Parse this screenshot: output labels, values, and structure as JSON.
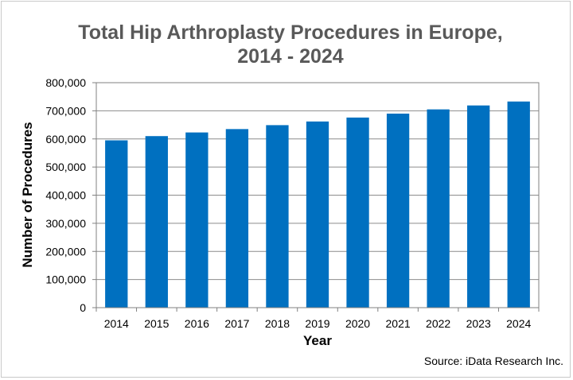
{
  "chart_data": {
    "type": "bar",
    "title_lines": [
      "Total Hip Arthroplasty Procedures in Europe,",
      "2014 - 2024"
    ],
    "xlabel": "Year",
    "ylabel": "Number of Procedures",
    "categories": [
      "2014",
      "2015",
      "2016",
      "2017",
      "2018",
      "2019",
      "2020",
      "2021",
      "2022",
      "2023",
      "2024"
    ],
    "values": [
      595000,
      610000,
      623000,
      635000,
      649000,
      662000,
      676000,
      690000,
      705000,
      719000,
      733000
    ],
    "ylim": [
      0,
      800000
    ],
    "y_ticks": [
      0,
      100000,
      200000,
      300000,
      400000,
      500000,
      600000,
      700000,
      800000
    ],
    "y_tick_labels": [
      "0",
      "100,000",
      "200,000",
      "300,000",
      "400,000",
      "500,000",
      "600,000",
      "700,000",
      "800,000"
    ],
    "grid": true,
    "bar_color": "#0070c0",
    "grid_color": "#8c8c8c",
    "source": "Source: iData Research Inc."
  }
}
